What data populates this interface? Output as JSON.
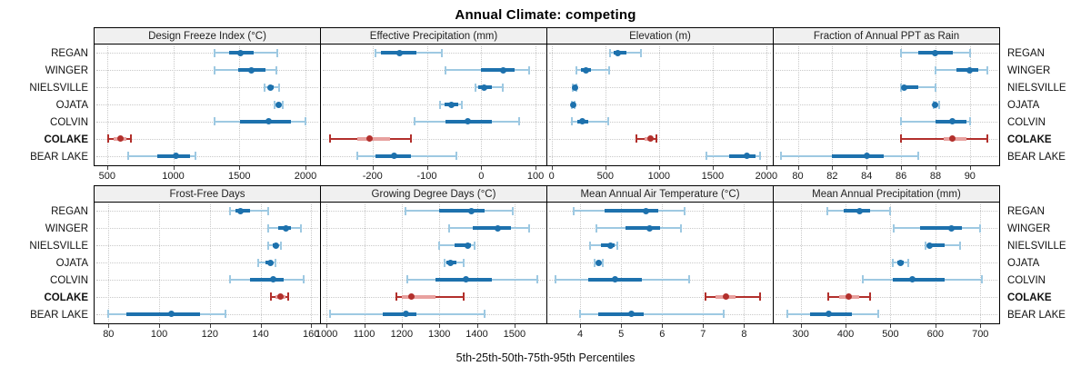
{
  "title": "Annual Climate: competing",
  "xlabel": "5th-25th-50th-75th-95th Percentiles",
  "percentile_labels": [
    "5th",
    "25th",
    "50th",
    "75th",
    "95th"
  ],
  "categories": [
    "REGAN",
    "WINGER",
    "NIELSVILLE",
    "OJATA",
    "COLVIN",
    "COLAKE",
    "BEAR LAKE"
  ],
  "highlight_site": "COLAKE",
  "colors": {
    "blue": "#1d71ad",
    "blue_light": "#9ec9e2",
    "red": "#b2302c",
    "red_light": "#e8a19f",
    "grid": "#c9c9c9",
    "strip_bg": "#f0f0f0",
    "border": "#000000"
  },
  "layout": {
    "rows": 2,
    "cols": 4,
    "legend": "none",
    "grid": "dotted"
  },
  "chart_data": [
    {
      "type": "dotplot-percentile",
      "title": "Design Freeze Index (°C)",
      "row": 0,
      "col": 0,
      "xlim": [
        405,
        2110
      ],
      "ticks": [
        500,
        1000,
        1500,
        2000
      ],
      "series": [
        {
          "name": "REGAN",
          "values": [
            1310,
            1420,
            1505,
            1610,
            1785
          ]
        },
        {
          "name": "WINGER",
          "values": [
            1310,
            1490,
            1590,
            1700,
            1780
          ]
        },
        {
          "name": "NIELSVILLE",
          "values": [
            1690,
            1715,
            1735,
            1760,
            1800
          ]
        },
        {
          "name": "OJATA",
          "values": [
            1765,
            1785,
            1800,
            1815,
            1830
          ]
        },
        {
          "name": "COLVIN",
          "values": [
            1310,
            1505,
            1720,
            1890,
            2000
          ]
        },
        {
          "name": "COLAKE",
          "values": [
            510,
            550,
            600,
            645,
            680
          ]
        },
        {
          "name": "BEAR LAKE",
          "values": [
            660,
            880,
            1020,
            1130,
            1170
          ]
        }
      ]
    },
    {
      "type": "dotplot-percentile",
      "title": "Effective Precipitation (mm)",
      "row": 0,
      "col": 1,
      "xlim": [
        -295,
        120
      ],
      "ticks": [
        -200,
        -100,
        0,
        100
      ],
      "series": [
        {
          "name": "REGAN",
          "values": [
            -195,
            -185,
            -150,
            -120,
            -72
          ]
        },
        {
          "name": "WINGER",
          "values": [
            -65,
            0,
            40,
            62,
            88
          ]
        },
        {
          "name": "NIELSVILLE",
          "values": [
            -10,
            -5,
            5,
            20,
            40
          ]
        },
        {
          "name": "OJATA",
          "values": [
            -75,
            -68,
            -55,
            -42,
            -35
          ]
        },
        {
          "name": "COLVIN",
          "values": [
            -122,
            -65,
            -25,
            20,
            70
          ]
        },
        {
          "name": "COLAKE",
          "values": [
            -278,
            -228,
            -205,
            -168,
            -130
          ]
        },
        {
          "name": "BEAR LAKE",
          "values": [
            -228,
            -195,
            -160,
            -130,
            -45
          ]
        }
      ]
    },
    {
      "type": "dotplot-percentile",
      "title": "Elevation (m)",
      "row": 0,
      "col": 2,
      "xlim": [
        -40,
        2060
      ],
      "ticks": [
        0,
        500,
        1000,
        1500,
        2000
      ],
      "series": [
        {
          "name": "REGAN",
          "values": [
            545,
            575,
            620,
            700,
            830
          ]
        },
        {
          "name": "WINGER",
          "values": [
            230,
            270,
            320,
            370,
            540
          ]
        },
        {
          "name": "NIELSVILLE",
          "values": [
            200,
            208,
            215,
            225,
            235
          ]
        },
        {
          "name": "OJATA",
          "values": [
            185,
            192,
            200,
            208,
            215
          ]
        },
        {
          "name": "COLVIN",
          "values": [
            185,
            240,
            290,
            340,
            530
          ]
        },
        {
          "name": "COLAKE",
          "values": [
            790,
            870,
            920,
            945,
            975
          ]
        },
        {
          "name": "BEAR LAKE",
          "values": [
            1440,
            1650,
            1815,
            1900,
            1945
          ]
        }
      ]
    },
    {
      "type": "dotplot-percentile",
      "title": "Fraction of Annual PPT as Rain",
      "row": 0,
      "col": 3,
      "xlim": [
        78.6,
        91.7
      ],
      "ticks": [
        80,
        82,
        84,
        86,
        88,
        90
      ],
      "series": [
        {
          "name": "REGAN",
          "values": [
            86,
            87,
            88,
            89,
            90
          ]
        },
        {
          "name": "WINGER",
          "values": [
            88,
            89.2,
            90,
            90.5,
            91
          ]
        },
        {
          "name": "NIELSVILLE",
          "values": [
            86,
            86,
            86.2,
            87,
            88
          ]
        },
        {
          "name": "OJATA",
          "values": [
            87.9,
            88,
            88,
            88.1,
            88.2
          ]
        },
        {
          "name": "COLVIN",
          "values": [
            86,
            88,
            89,
            89.8,
            90
          ]
        },
        {
          "name": "COLAKE",
          "values": [
            86,
            88.5,
            89,
            89.8,
            91
          ]
        },
        {
          "name": "BEAR LAKE",
          "values": [
            79,
            82,
            84,
            85,
            87
          ]
        }
      ]
    },
    {
      "type": "dotplot-percentile",
      "title": "Frost-Free Days",
      "row": 1,
      "col": 0,
      "xlim": [
        74.5,
        163.5
      ],
      "ticks": [
        80,
        100,
        120,
        140,
        160
      ],
      "series": [
        {
          "name": "REGAN",
          "values": [
            128,
            130,
            132,
            136,
            143
          ]
        },
        {
          "name": "WINGER",
          "values": [
            143,
            147,
            150,
            152,
            156
          ]
        },
        {
          "name": "NIELSVILLE",
          "values": [
            143,
            145,
            146,
            147,
            148
          ]
        },
        {
          "name": "OJATA",
          "values": [
            139,
            142,
            144,
            145,
            146
          ]
        },
        {
          "name": "COLVIN",
          "values": [
            128,
            136,
            145,
            149,
            157
          ]
        },
        {
          "name": "COLAKE",
          "values": [
            144,
            146,
            148,
            150,
            151
          ]
        },
        {
          "name": "BEAR LAKE",
          "values": [
            80,
            87,
            105,
            116,
            126
          ]
        }
      ]
    },
    {
      "type": "dotplot-percentile",
      "title": "Growing Degree Days (°C)",
      "row": 1,
      "col": 1,
      "xlim": [
        985,
        1585
      ],
      "ticks": [
        1000,
        1100,
        1200,
        1300,
        1400,
        1500
      ],
      "series": [
        {
          "name": "REGAN",
          "values": [
            1210,
            1300,
            1385,
            1420,
            1495
          ]
        },
        {
          "name": "WINGER",
          "values": [
            1325,
            1390,
            1455,
            1490,
            1540
          ]
        },
        {
          "name": "NIELSVILLE",
          "values": [
            1300,
            1340,
            1375,
            1385,
            1395
          ]
        },
        {
          "name": "OJATA",
          "values": [
            1315,
            1320,
            1330,
            1345,
            1365
          ]
        },
        {
          "name": "COLVIN",
          "values": [
            1215,
            1290,
            1370,
            1440,
            1560
          ]
        },
        {
          "name": "COLAKE",
          "values": [
            1185,
            1200,
            1225,
            1290,
            1365
          ]
        },
        {
          "name": "BEAR LAKE",
          "values": [
            1010,
            1150,
            1210,
            1240,
            1420
          ]
        }
      ]
    },
    {
      "type": "dotplot-percentile",
      "title": "Mean Annual Air Temperature (°C)",
      "row": 1,
      "col": 2,
      "xlim": [
        3.2,
        8.7
      ],
      "ticks": [
        4,
        5,
        6,
        7,
        8
      ],
      "series": [
        {
          "name": "REGAN",
          "values": [
            3.85,
            4.6,
            5.6,
            5.9,
            6.55
          ]
        },
        {
          "name": "WINGER",
          "values": [
            4.4,
            5.1,
            5.7,
            5.95,
            6.45
          ]
        },
        {
          "name": "NIELSVILLE",
          "values": [
            4.25,
            4.5,
            4.75,
            4.85,
            4.9
          ]
        },
        {
          "name": "OJATA",
          "values": [
            4.35,
            4.4,
            4.45,
            4.5,
            4.55
          ]
        },
        {
          "name": "COLVIN",
          "values": [
            3.4,
            4.2,
            4.85,
            5.5,
            6.65
          ]
        },
        {
          "name": "COLAKE",
          "values": [
            7.05,
            7.3,
            7.55,
            7.8,
            8.4
          ]
        },
        {
          "name": "BEAR LAKE",
          "values": [
            4.0,
            4.45,
            5.25,
            5.55,
            7.5
          ]
        }
      ]
    },
    {
      "type": "dotplot-percentile",
      "title": "Mean Annual Precipitation (mm)",
      "row": 1,
      "col": 3,
      "xlim": [
        240,
        742
      ],
      "ticks": [
        300,
        400,
        500,
        600,
        700
      ],
      "series": [
        {
          "name": "REGAN",
          "values": [
            360,
            395,
            432,
            455,
            500
          ]
        },
        {
          "name": "WINGER",
          "values": [
            508,
            565,
            635,
            660,
            700
          ]
        },
        {
          "name": "NIELSVILLE",
          "values": [
            578,
            583,
            588,
            620,
            655
          ]
        },
        {
          "name": "OJATA",
          "values": [
            505,
            515,
            522,
            530,
            540
          ]
        },
        {
          "name": "COLVIN",
          "values": [
            438,
            505,
            548,
            620,
            703
          ]
        },
        {
          "name": "COLAKE",
          "values": [
            362,
            385,
            408,
            430,
            455
          ]
        },
        {
          "name": "BEAR LAKE",
          "values": [
            270,
            320,
            362,
            415,
            472
          ]
        }
      ]
    }
  ]
}
